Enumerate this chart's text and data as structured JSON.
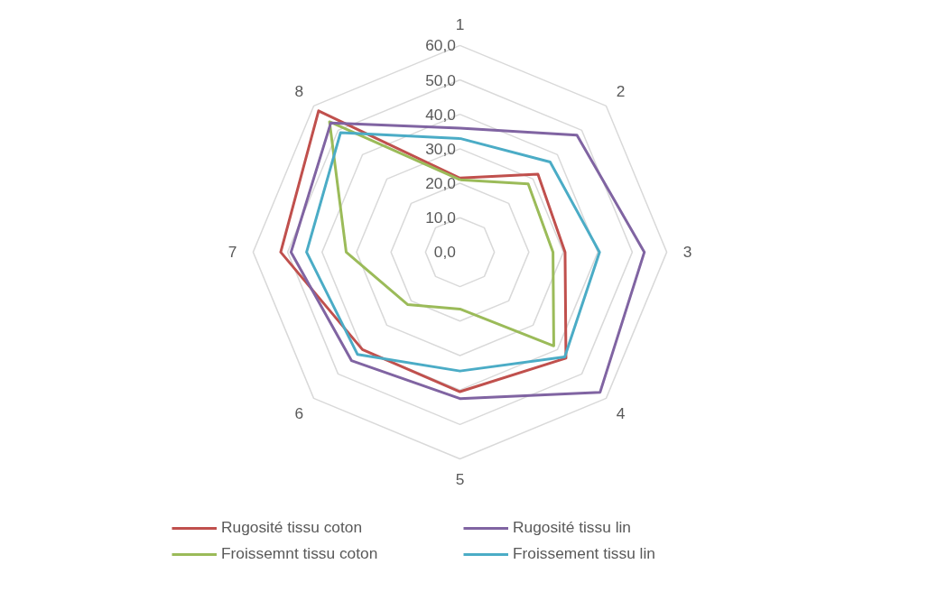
{
  "chart_data": {
    "type": "radar",
    "categories": [
      "1",
      "2",
      "3",
      "4",
      "5",
      "6",
      "7",
      "8"
    ],
    "ylim": [
      0,
      60
    ],
    "yticks": [
      {
        "value": 0,
        "label": "0,0"
      },
      {
        "value": 10,
        "label": "10,0"
      },
      {
        "value": 20,
        "label": "20,0"
      },
      {
        "value": 30,
        "label": "30,0"
      },
      {
        "value": 40,
        "label": "40,0"
      },
      {
        "value": 50,
        "label": "50,0"
      },
      {
        "value": 60,
        "label": "60,0"
      }
    ],
    "grid": true,
    "legend": "bottom",
    "marker": "none",
    "series": [
      {
        "name": "Rugosité tissu coton",
        "color": "#c0504d",
        "values": [
          21.5,
          32,
          30.5,
          43.5,
          40.5,
          40,
          52,
          58
        ]
      },
      {
        "name": "Froissemnt tissu coton",
        "color": "#9bbb59",
        "values": [
          21,
          28,
          27,
          38.5,
          16.5,
          21.5,
          33,
          53.5
        ]
      },
      {
        "name": "Rugosité tissu lin",
        "color": "#8064a2",
        "values": [
          36,
          48,
          53.5,
          57.5,
          42.5,
          44.5,
          49,
          53
        ]
      },
      {
        "name": "Froissement tissu lin",
        "color": "#4bacc6",
        "values": [
          33,
          37,
          40.5,
          43,
          34.5,
          42,
          44.5,
          49
        ]
      }
    ]
  }
}
